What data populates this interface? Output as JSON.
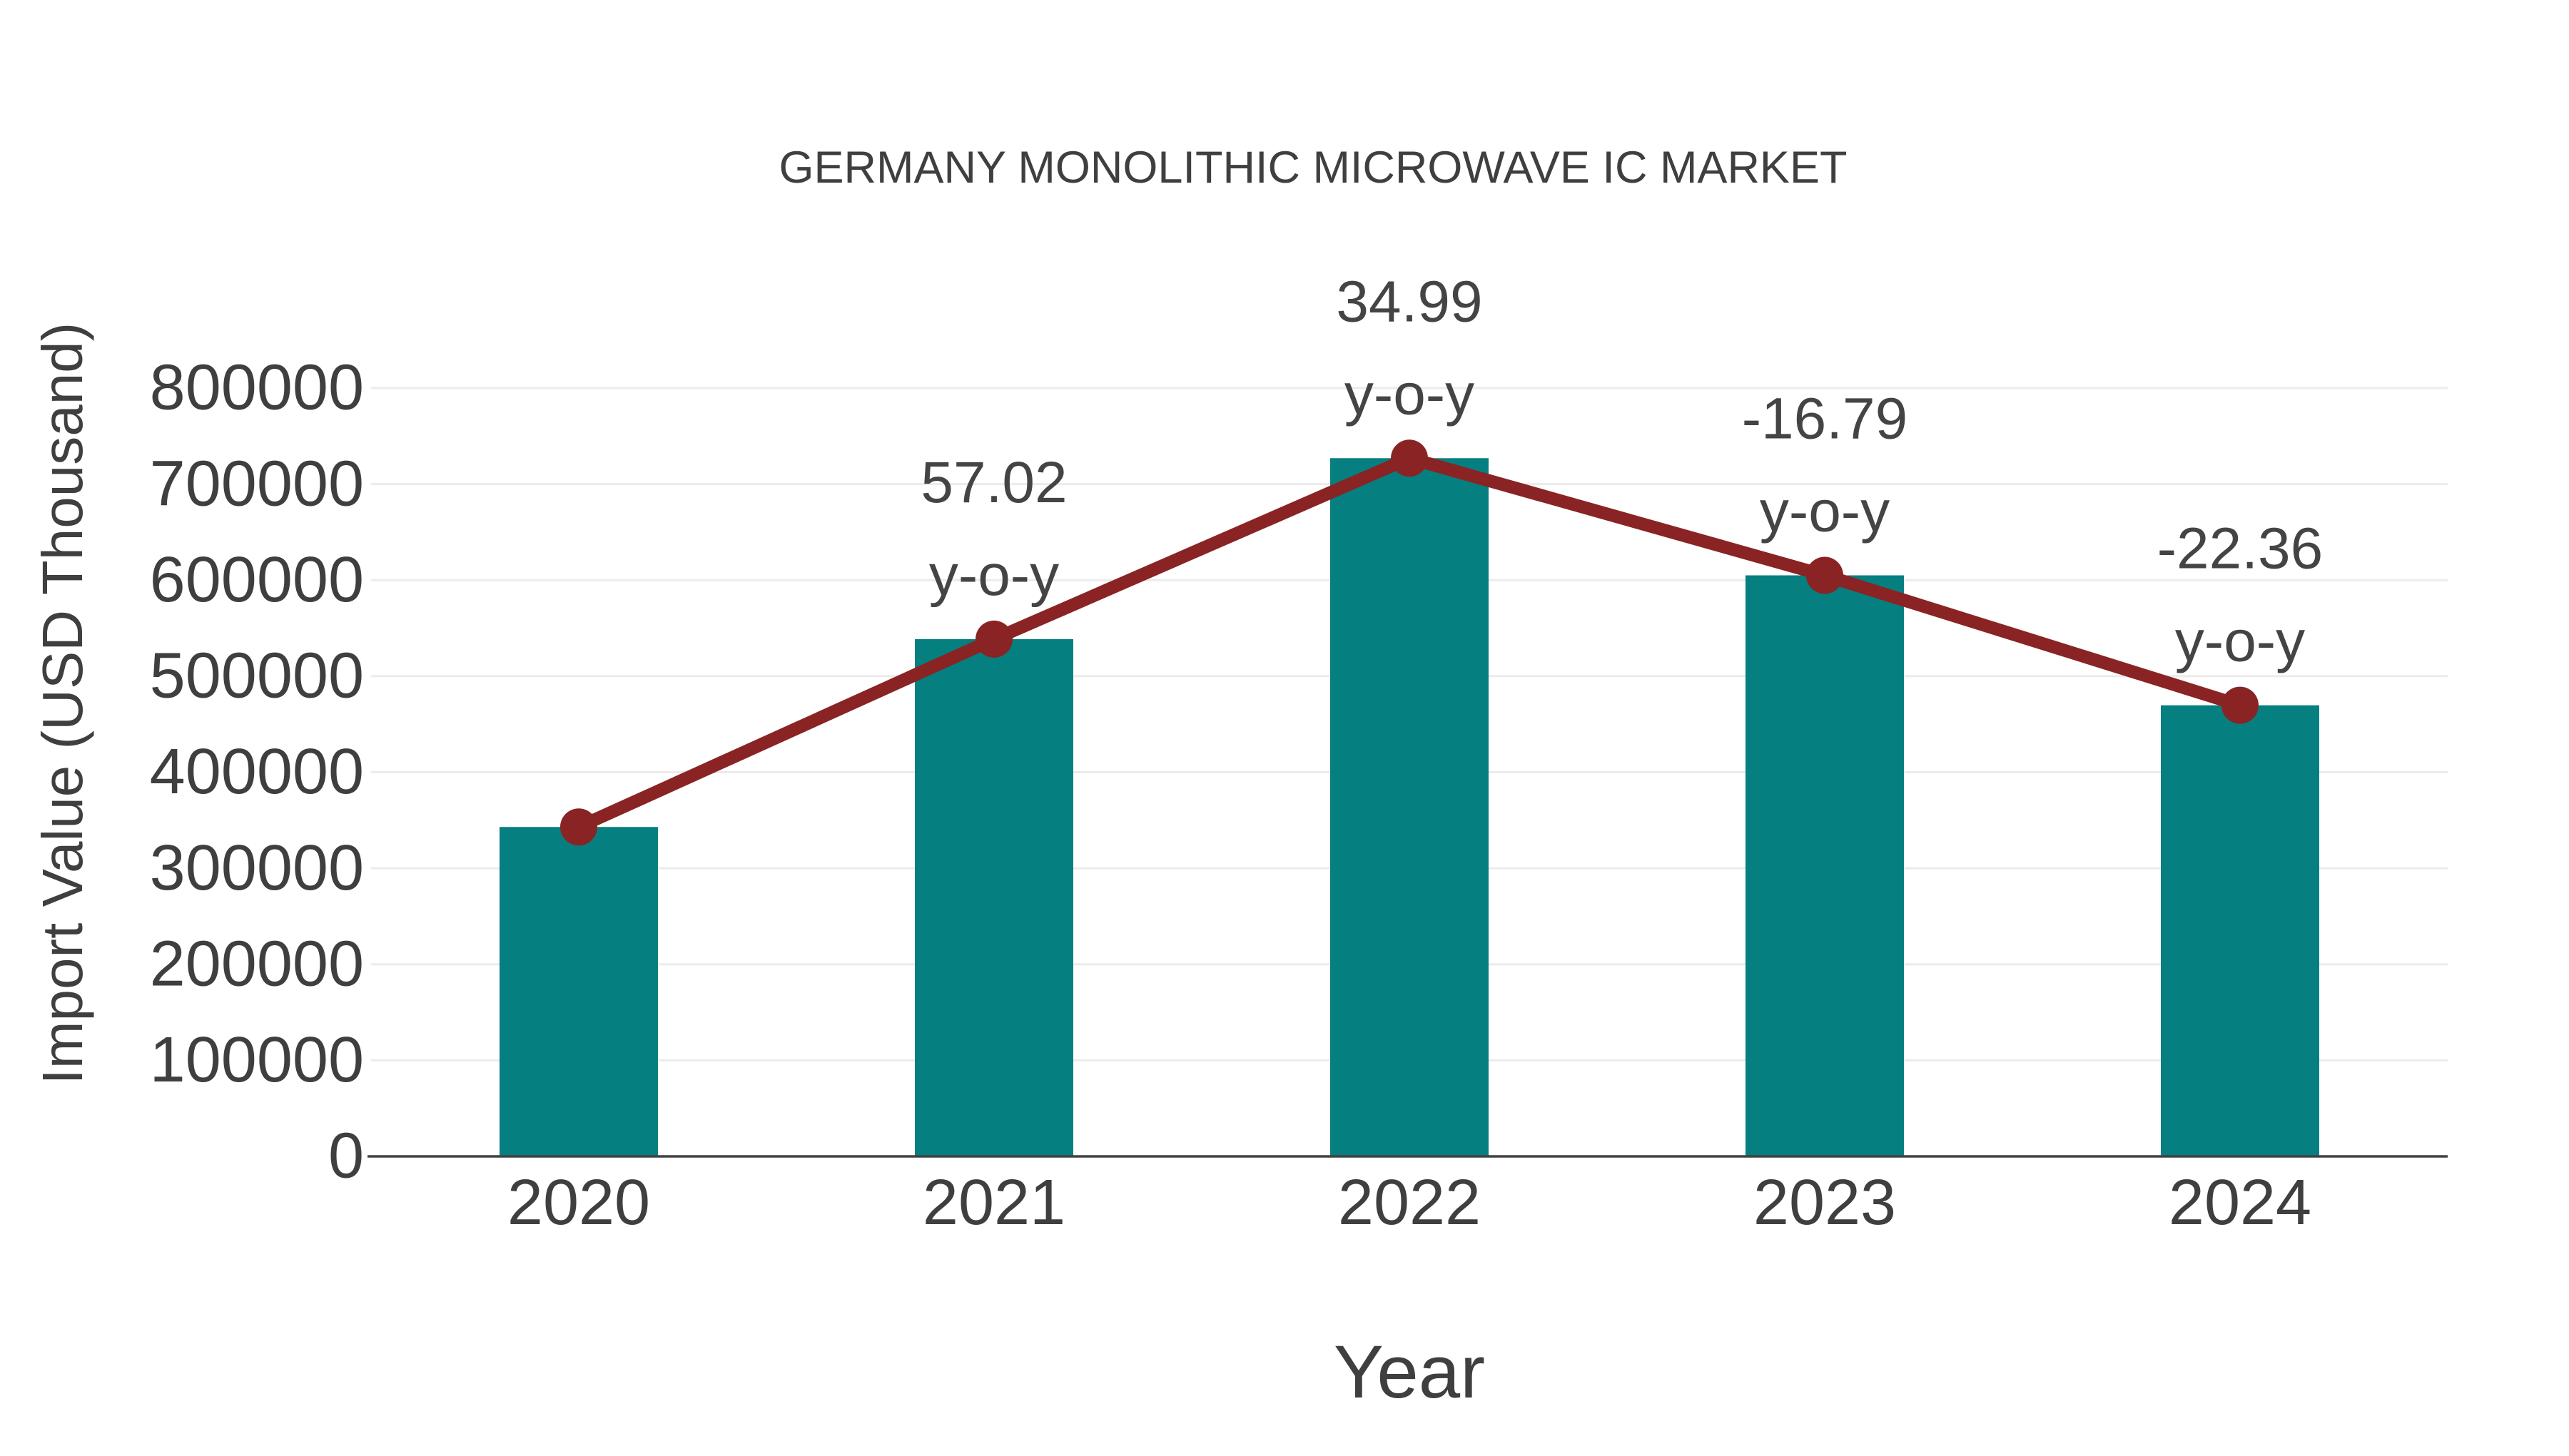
{
  "chart_data": {
    "type": "bar",
    "title": "GERMANY MONOLITHIC MICROWAVE IC MARKET",
    "xlabel": "Year",
    "ylabel": "Import Value (USD Thousand)",
    "categories": [
      "2020",
      "2021",
      "2022",
      "2023",
      "2024"
    ],
    "series": [
      {
        "name": "import-value-bars",
        "type": "bar",
        "color": "#067f81",
        "values": [
          343000,
          538600,
          727000,
          605000,
          469700
        ]
      },
      {
        "name": "import-value-trend",
        "type": "line",
        "color": "#8a2323",
        "values": [
          343000,
          538600,
          727000,
          605000,
          469700
        ]
      }
    ],
    "annotations": [
      {
        "category": "2021",
        "value": "57.02",
        "suffix": "y-o-y"
      },
      {
        "category": "2022",
        "value": "34.99",
        "suffix": "y-o-y"
      },
      {
        "category": "2023",
        "value": "-16.79",
        "suffix": "y-o-y"
      },
      {
        "category": "2024",
        "value": "-22.36",
        "suffix": "y-o-y"
      }
    ],
    "ylim": [
      0,
      800000
    ],
    "ytick_step": 100000,
    "yticks": [
      0,
      100000,
      200000,
      300000,
      400000,
      500000,
      600000,
      700000,
      800000
    ],
    "grid": true,
    "legend_position": "none",
    "colors": {
      "text": "#3f3f3f",
      "annotation_text": "#444444",
      "grid": "#ebebeb",
      "axis_line": "#424242",
      "background": "#ffffff"
    }
  }
}
